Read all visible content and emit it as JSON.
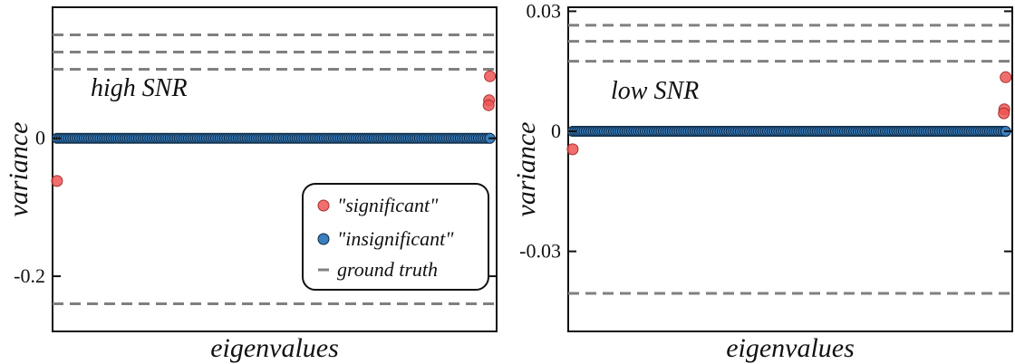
{
  "colors": {
    "significant": "#ee5555",
    "insignificant": "#3a7fbf",
    "insignificant_edge": "#0e2a45",
    "ground_truth": "#808080",
    "axis": "#111111"
  },
  "legend": {
    "entries": [
      {
        "label": "\"significant\"",
        "kind": "marker",
        "color_key": "significant"
      },
      {
        "label": "\"insignificant\"",
        "kind": "marker",
        "color_key": "insignificant"
      },
      {
        "label": "ground truth",
        "kind": "dash",
        "color_key": "ground_truth"
      }
    ]
  },
  "chart_data": [
    {
      "type": "scatter",
      "annotation": "high SNR",
      "xlabel": "eigenvalues",
      "ylabel": "variance",
      "xlim": [
        0,
        100
      ],
      "ylim": [
        -0.28,
        0.19
      ],
      "yticks": [
        0.2,
        0,
        -0.2
      ],
      "ytick_labels": [
        "",
        "0",
        "-0.2"
      ],
      "grid": false,
      "legend_position": "bottom-right",
      "ground_truth": [
        0.15,
        0.125,
        0.1,
        -0.24
      ],
      "significant": {
        "name": "\"significant\"",
        "x": [
          1,
          98.5,
          98.3,
          98.2
        ],
        "y": [
          -0.062,
          0.09,
          0.055,
          0.048
        ]
      },
      "insignificant": {
        "name": "\"insignificant\"",
        "x_start": 1,
        "x_end": 98.5,
        "y": 0
      }
    },
    {
      "type": "scatter",
      "annotation": "low SNR",
      "xlabel": "eigenvalues",
      "ylabel": "variance",
      "xlim": [
        0,
        100
      ],
      "ylim": [
        -0.05,
        0.031
      ],
      "yticks": [
        0.03,
        0,
        -0.03
      ],
      "ytick_labels": [
        "0.03",
        "0",
        "-0.03"
      ],
      "grid": false,
      "legend_position": "none",
      "ground_truth": [
        0.0265,
        0.0225,
        0.0175,
        -0.0405
      ],
      "significant": {
        "name": "\"significant\"",
        "x": [
          1,
          98.5,
          98.2,
          98.1
        ],
        "y": [
          -0.0045,
          0.0135,
          0.0055,
          0.0045
        ]
      },
      "insignificant": {
        "name": "\"insignificant\"",
        "x_start": 1,
        "x_end": 98.5,
        "y": 0
      }
    }
  ]
}
